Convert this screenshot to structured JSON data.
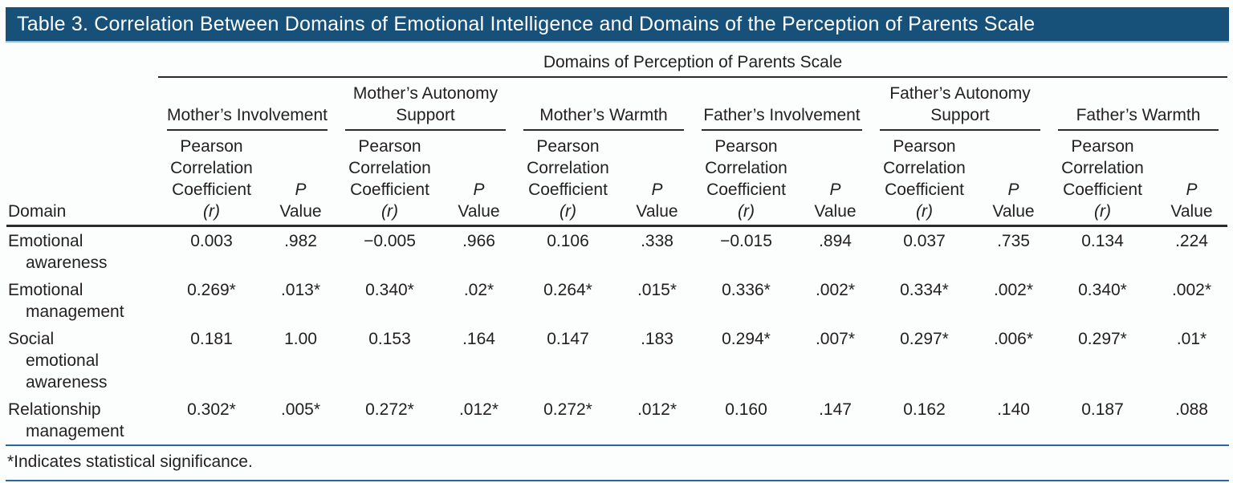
{
  "page": {
    "title": "Table 3. Correlation Between Domains of Emotional Intelligence and Domains of the Perception of Parents Scale"
  },
  "table": {
    "span_header": "Domains of Perception of Parents Scale",
    "domain_header": "Domain",
    "groups": [
      "Mother’s Involvement",
      "Mother’s Autonomy Support",
      "Mother’s Warmth",
      "Father’s Involvement",
      "Father’s Autonomy Support",
      "Father’s Warmth"
    ],
    "sub": {
      "r_lines": [
        "Pearson",
        "Correlation",
        "Coefficient"
      ],
      "r_symbol": "(r)",
      "p_line1": "P",
      "p_line2": "Value"
    },
    "rows": [
      {
        "domain": [
          "Emotional",
          "awareness"
        ],
        "values": [
          "0.003",
          ".982",
          "−0.005",
          ".966",
          "0.106",
          ".338",
          "−0.015",
          ".894",
          "0.037",
          ".735",
          "0.134",
          ".224"
        ]
      },
      {
        "domain": [
          "Emotional",
          "management"
        ],
        "values": [
          "0.269*",
          ".013*",
          "0.340*",
          ".02*",
          "0.264*",
          ".015*",
          "0.336*",
          ".002*",
          "0.334*",
          ".002*",
          "0.340*",
          ".002*"
        ]
      },
      {
        "domain": [
          "Social",
          "emotional",
          "awareness"
        ],
        "values": [
          "0.181",
          "1.00",
          "0.153",
          ".164",
          "0.147",
          ".183",
          "0.294*",
          ".007*",
          "0.297*",
          ".006*",
          "0.297*",
          ".01*"
        ]
      },
      {
        "domain": [
          "Relationship",
          "management"
        ],
        "values": [
          "0.302*",
          ".005*",
          "0.272*",
          ".012*",
          "0.272*",
          ".012*",
          "0.160",
          ".147",
          "0.162",
          ".140",
          "0.187",
          ".088"
        ]
      }
    ],
    "footnote": "*Indicates statistical significance."
  },
  "colors": {
    "title_bar_bg": "#175078",
    "title_bar_edge": "#9cc0d8",
    "rule_dark": "#2b2b2b",
    "rule_blue": "#29689b",
    "text": "#221f1f",
    "title_text": "#ffffff",
    "page_bg": "#fcfdfd"
  }
}
